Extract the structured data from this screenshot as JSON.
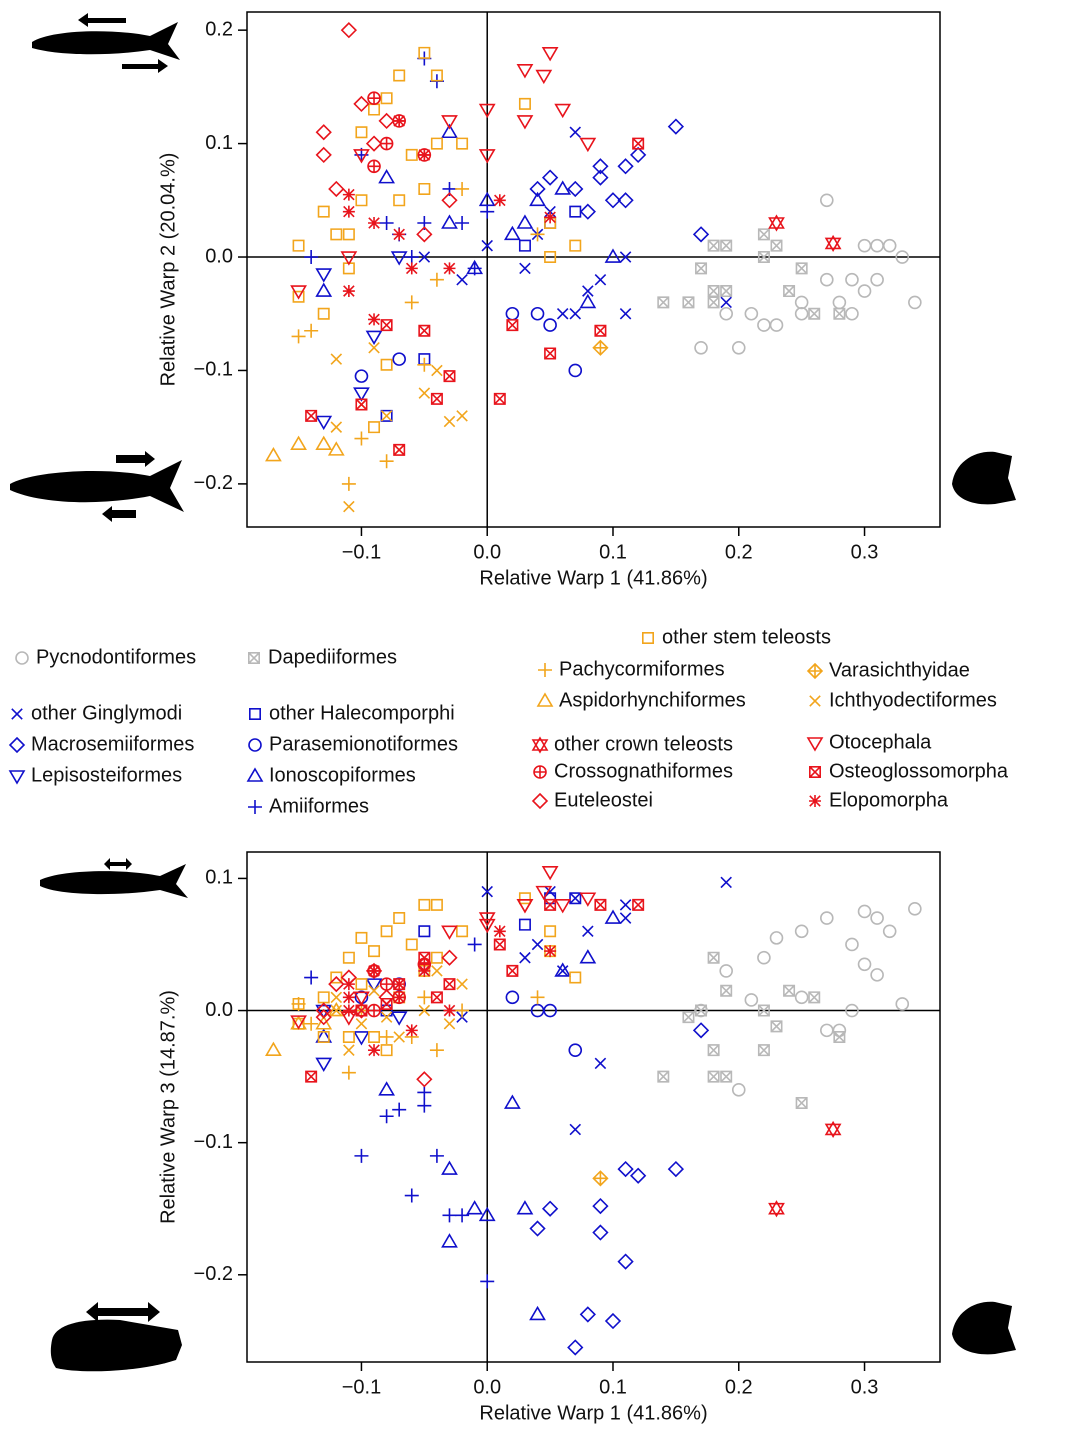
{
  "chart_data": [
    {
      "type": "scatter",
      "xlabel": "Relative Warp 1 (41.86%)",
      "ylabel": "Relative Warp 2 (20.04.%)",
      "xlim": [
        -0.191,
        0.36
      ],
      "ylim": [
        -0.238,
        0.216
      ],
      "xticks": [
        {
          "value": -0.1,
          "label": "−0.1"
        },
        {
          "value": 0,
          "label": "0.0"
        },
        0.1,
        0.2,
        0.3
      ],
      "yticks": [
        {
          "value": -0.2,
          "label": "−0.2"
        },
        {
          "value": -0.1,
          "label": "−0.1"
        },
        {
          "value": 0,
          "label": "0.0"
        },
        0.1,
        0.2
      ],
      "series": [
        {
          "name": "Pycnodontiformes",
          "color": "#b8b8b8",
          "marker": "circle",
          "x": [
            0.27,
            0.3,
            0.31,
            0.32,
            0.33,
            0.34,
            0.29,
            0.3,
            0.29,
            0.28,
            0.25,
            0.23,
            0.22,
            0.21,
            0.19,
            0.17,
            0.2,
            0.25,
            0.31,
            0.27
          ],
          "y": [
            0.05,
            0.01,
            0.01,
            0.01,
            0.0,
            -0.04,
            -0.02,
            -0.03,
            -0.05,
            -0.04,
            -0.05,
            -0.06,
            -0.06,
            -0.05,
            -0.05,
            -0.08,
            -0.08,
            -0.04,
            -0.02,
            -0.02
          ]
        },
        {
          "name": "Dapediiformes",
          "color": "#b8b8b8",
          "marker": "boxed-x",
          "x": [
            0.18,
            0.19,
            0.22,
            0.23,
            0.22,
            0.17,
            0.18,
            0.18,
            0.19,
            0.16,
            0.14,
            0.24,
            0.26,
            0.28,
            0.25
          ],
          "y": [
            0.01,
            0.01,
            0.0,
            0.01,
            0.02,
            -0.01,
            -0.03,
            -0.04,
            -0.03,
            -0.04,
            -0.04,
            -0.03,
            -0.05,
            -0.05,
            -0.01
          ]
        },
        {
          "name": "other Ginglymodi",
          "color": "#1010cc",
          "marker": "x",
          "x": [
            0.07,
            0.05,
            0.08,
            0.07,
            0.11,
            0.11,
            0.19,
            0.03,
            0.0,
            -0.02,
            0.04,
            0.06,
            0.09,
            -0.05
          ],
          "y": [
            0.11,
            0.04,
            -0.03,
            -0.05,
            0.0,
            -0.05,
            -0.04,
            -0.01,
            0.01,
            -0.02,
            0.02,
            -0.05,
            -0.02,
            0.0
          ]
        },
        {
          "name": "Macrosemiiformes",
          "color": "#1010cc",
          "marker": "diamond",
          "x": [
            0.15,
            0.12,
            0.11,
            0.09,
            0.1,
            0.11,
            0.08,
            0.07,
            0.17,
            0.05,
            0.04,
            0.09
          ],
          "y": [
            0.115,
            0.09,
            0.08,
            0.08,
            0.05,
            0.05,
            0.04,
            0.06,
            0.02,
            0.07,
            0.06,
            0.07
          ]
        },
        {
          "name": "Lepisosteiformes",
          "color": "#1010cc",
          "marker": "triangle-down",
          "x": [
            -0.13,
            -0.13,
            -0.09,
            -0.1,
            -0.07
          ],
          "y": [
            -0.015,
            -0.145,
            -0.07,
            -0.12,
            0.0
          ]
        },
        {
          "name": "other Halecomporphi",
          "color": "#1010cc",
          "marker": "square",
          "x": [
            -0.08,
            -0.05,
            0.03,
            0.07,
            0.05
          ],
          "y": [
            -0.14,
            -0.09,
            0.01,
            0.04,
            0.03
          ]
        },
        {
          "name": "Parasemionotiformes",
          "color": "#1010cc",
          "marker": "circle",
          "x": [
            -0.1,
            -0.07,
            0.02,
            0.04,
            0.07,
            0.05
          ],
          "y": [
            -0.105,
            -0.09,
            -0.05,
            -0.05,
            -0.1,
            -0.06
          ]
        },
        {
          "name": "Ionoscopiformes",
          "color": "#1010cc",
          "marker": "triangle-up",
          "x": [
            -0.13,
            -0.08,
            -0.03,
            0.0,
            0.02,
            0.03,
            0.06,
            0.08,
            -0.01,
            0.1,
            0.04,
            -0.03
          ],
          "y": [
            -0.03,
            0.07,
            0.11,
            0.05,
            0.02,
            0.03,
            0.06,
            -0.04,
            -0.01,
            0.0,
            0.05,
            0.03
          ]
        },
        {
          "name": "Amiiformes",
          "color": "#1010cc",
          "marker": "plus",
          "x": [
            -0.05,
            -0.04,
            -0.1,
            -0.14,
            -0.07,
            -0.05,
            0.0,
            -0.06,
            -0.02,
            -0.08,
            -0.03,
            -0.01
          ],
          "y": [
            0.175,
            0.155,
            0.09,
            0.0,
            0.02,
            0.03,
            0.04,
            0.0,
            0.03,
            0.03,
            0.06,
            -0.01
          ]
        },
        {
          "name": "other stem teleosts",
          "color": "#f2a51c",
          "marker": "square",
          "x": [
            -0.05,
            -0.07,
            -0.08,
            -0.04,
            0.03,
            -0.1,
            -0.09,
            -0.06,
            -0.04,
            -0.02,
            -0.1,
            -0.12,
            -0.13,
            -0.15,
            -0.11,
            -0.15,
            -0.13,
            -0.11,
            -0.08,
            -0.07,
            -0.05,
            0.05,
            0.07,
            -0.09,
            0.05
          ],
          "y": [
            0.18,
            0.16,
            0.14,
            0.16,
            0.135,
            0.11,
            0.13,
            0.09,
            0.1,
            0.1,
            0.05,
            0.02,
            0.04,
            0.01,
            -0.01,
            -0.035,
            -0.05,
            0.02,
            -0.095,
            0.05,
            0.06,
            0.03,
            0.01,
            -0.15,
            0.0
          ]
        },
        {
          "name": "Pachycormiformes",
          "color": "#f2a51c",
          "marker": "plus",
          "x": [
            -0.15,
            -0.14,
            -0.11,
            -0.08,
            -0.1,
            -0.05,
            -0.04,
            -0.02,
            0.04,
            -0.06
          ],
          "y": [
            -0.07,
            -0.065,
            -0.2,
            -0.18,
            -0.16,
            -0.095,
            -0.02,
            0.06,
            0.02,
            -0.04
          ]
        },
        {
          "name": "Aspidorhynchiformes",
          "color": "#f2a51c",
          "marker": "triangle-up",
          "x": [
            -0.17,
            -0.15,
            -0.13,
            -0.12
          ],
          "y": [
            -0.175,
            -0.165,
            -0.165,
            -0.17
          ]
        },
        {
          "name": "Varasichthyidae",
          "color": "#f2a51c",
          "marker": "diamond-plus",
          "x": [
            0.09
          ],
          "y": [
            -0.08
          ]
        },
        {
          "name": "Ichthyodectiformes",
          "color": "#f2a51c",
          "marker": "x",
          "x": [
            -0.11,
            -0.12,
            -0.1,
            -0.08,
            -0.07,
            -0.03,
            -0.05,
            -0.12,
            -0.09,
            -0.02,
            -0.04
          ],
          "y": [
            -0.22,
            -0.15,
            -0.13,
            -0.14,
            -0.17,
            -0.145,
            -0.12,
            -0.09,
            -0.08,
            -0.14,
            -0.1
          ]
        },
        {
          "name": "other crown teleosts",
          "color": "#e8141c",
          "marker": "hourglass",
          "x": [
            0.23,
            0.275
          ],
          "y": [
            0.03,
            0.012
          ]
        },
        {
          "name": "Otocephala",
          "color": "#e8141c",
          "marker": "triangle-down",
          "x": [
            0.05,
            0.03,
            0.045,
            0.06,
            0.0,
            -0.03,
            -0.1,
            0.08,
            0.03,
            -0.15,
            -0.11,
            0.0
          ],
          "y": [
            0.18,
            0.165,
            0.16,
            0.13,
            0.13,
            0.12,
            0.09,
            0.1,
            0.12,
            -0.03,
            0.0,
            0.09
          ]
        },
        {
          "name": "Crossognathiformes",
          "color": "#e8141c",
          "marker": "circle-plus",
          "x": [
            -0.08,
            -0.09,
            -0.07,
            -0.05,
            -0.09
          ],
          "y": [
            0.1,
            0.14,
            0.12,
            0.09,
            0.08
          ]
        },
        {
          "name": "Euteleostei",
          "color": "#e8141c",
          "marker": "diamond",
          "x": [
            -0.11,
            -0.1,
            -0.13,
            -0.13,
            -0.12,
            -0.09,
            -0.03,
            -0.05,
            -0.08
          ],
          "y": [
            0.2,
            0.135,
            0.11,
            0.09,
            0.06,
            0.1,
            0.05,
            0.02,
            0.12
          ]
        },
        {
          "name": "Osteoglossomorpha",
          "color": "#e8141c",
          "marker": "boxed-x",
          "x": [
            -0.14,
            -0.1,
            -0.07,
            -0.04,
            -0.03,
            0.01,
            0.05,
            0.09,
            0.02,
            -0.08,
            -0.05,
            0.12
          ],
          "y": [
            -0.14,
            -0.13,
            -0.17,
            -0.125,
            -0.105,
            -0.125,
            -0.085,
            -0.065,
            -0.06,
            -0.06,
            -0.065,
            0.1
          ]
        },
        {
          "name": "Elopomorpha",
          "color": "#e8141c",
          "marker": "asterisk",
          "x": [
            -0.07,
            -0.05,
            -0.11,
            -0.11,
            -0.09,
            -0.07,
            -0.11,
            -0.09,
            0.05,
            0.01,
            -0.03,
            -0.06
          ],
          "y": [
            0.12,
            0.09,
            0.055,
            0.04,
            0.03,
            0.02,
            -0.03,
            -0.055,
            0.035,
            0.05,
            -0.01,
            -0.01
          ]
        }
      ]
    },
    {
      "type": "scatter",
      "xlabel": "Relative Warp 1 (41.86%)",
      "ylabel": "Relative Warp 3 (14.87.%)",
      "xlim": [
        -0.191,
        0.36
      ],
      "ylim": [
        -0.266,
        0.12
      ],
      "xticks": [
        {
          "value": -0.1,
          "label": "−0.1"
        },
        {
          "value": 0,
          "label": "0.0"
        },
        0.1,
        0.2,
        0.3
      ],
      "yticks": [
        {
          "value": -0.2,
          "label": "−0.2"
        },
        {
          "value": -0.1,
          "label": "−0.1"
        },
        {
          "value": 0,
          "label": "0.0"
        },
        0.1
      ],
      "series": [
        {
          "y": [
            0.07,
            0.075,
            0.07,
            0.06,
            0.005,
            0.077,
            0.05,
            0.035,
            0.0,
            -0.015,
            0.06,
            0.055,
            0.04,
            0.008,
            0.03,
            0.0,
            -0.06,
            0.01,
            0.027,
            -0.015
          ]
        },
        {
          "y": [
            0.04,
            0.015,
            0.0,
            -0.012,
            -0.03,
            0.0,
            -0.03,
            -0.05,
            -0.05,
            -0.005,
            -0.05,
            0.015,
            0.01,
            -0.02,
            -0.07
          ]
        },
        {
          "y": [
            0.085,
            0.09,
            0.06,
            -0.09,
            0.08,
            0.07,
            0.097,
            0.04,
            0.09,
            -0.005,
            0.05,
            0.03,
            -0.04,
            0.03
          ]
        },
        {
          "y": [
            -0.12,
            -0.125,
            -0.12,
            -0.148,
            -0.235,
            -0.19,
            -0.23,
            -0.255,
            -0.015,
            -0.15,
            -0.165,
            -0.168
          ]
        },
        {
          "y": [
            -0.04,
            0.0,
            0.02,
            -0.02,
            -0.005
          ]
        },
        {
          "y": [
            0.0,
            0.06,
            0.065,
            0.085,
            0.085
          ]
        },
        {
          "y": [
            0.01,
            0.02,
            0.01,
            0.0,
            -0.03,
            0.0
          ]
        },
        {
          "y": [
            -0.02,
            -0.06,
            -0.12,
            -0.155,
            -0.07,
            -0.15,
            0.03,
            0.04,
            -0.15,
            0.07,
            -0.23,
            -0.175
          ]
        },
        {
          "y": [
            -0.062,
            -0.11,
            -0.11,
            0.025,
            -0.075,
            -0.072,
            -0.205,
            -0.14,
            -0.155,
            -0.08,
            -0.155,
            0.05
          ]
        },
        {
          "y": [
            0.08,
            0.07,
            0.06,
            0.08,
            0.085,
            0.055,
            0.045,
            0.05,
            0.04,
            0.06,
            0.02,
            0.025,
            0.01,
            0.005,
            0.04,
            -0.01,
            -0.02,
            -0.02,
            -0.03,
            0.01,
            0.03,
            0.06,
            0.025,
            -0.02,
            0.045
          ]
        },
        {
          "y": [
            0.005,
            -0.01,
            -0.047,
            -0.02,
            0.0,
            0.01,
            -0.03,
            0.0,
            0.01,
            -0.02
          ]
        },
        {
          "y": [
            -0.03,
            -0.01,
            -0.01,
            0.0
          ]
        },
        {
          "y": [
            -0.127
          ]
        },
        {
          "y": [
            -0.03,
            0.0,
            -0.01,
            -0.005,
            -0.02,
            -0.01,
            0.0,
            0.01,
            0.015,
            0.02,
            0.03
          ]
        },
        {
          "y": [
            -0.15,
            -0.09
          ]
        },
        {
          "y": [
            0.105,
            0.08,
            0.09,
            0.08,
            0.065,
            0.06,
            0.01,
            0.085,
            0.08,
            -0.008,
            -0.005,
            0.07
          ]
        },
        {
          "y": [
            0.02,
            0.03,
            0.01,
            0.035,
            0.0
          ]
        },
        {
          "y": [
            0.025,
            0.0,
            0.0,
            -0.005,
            0.02,
            0.03,
            0.04,
            -0.052,
            0.01
          ]
        },
        {
          "y": [
            -0.05,
            0.0,
            0.02,
            0.01,
            0.02,
            0.05,
            0.08,
            0.08,
            0.03,
            0.005,
            0.04,
            0.08
          ]
        },
        {
          "y": [
            0.02,
            0.03,
            0.01,
            0.02,
            0.03,
            0.01,
            0.0,
            -0.03,
            0.045,
            0.06,
            0.0,
            -0.015
          ]
        }
      ]
    }
  ]
}
